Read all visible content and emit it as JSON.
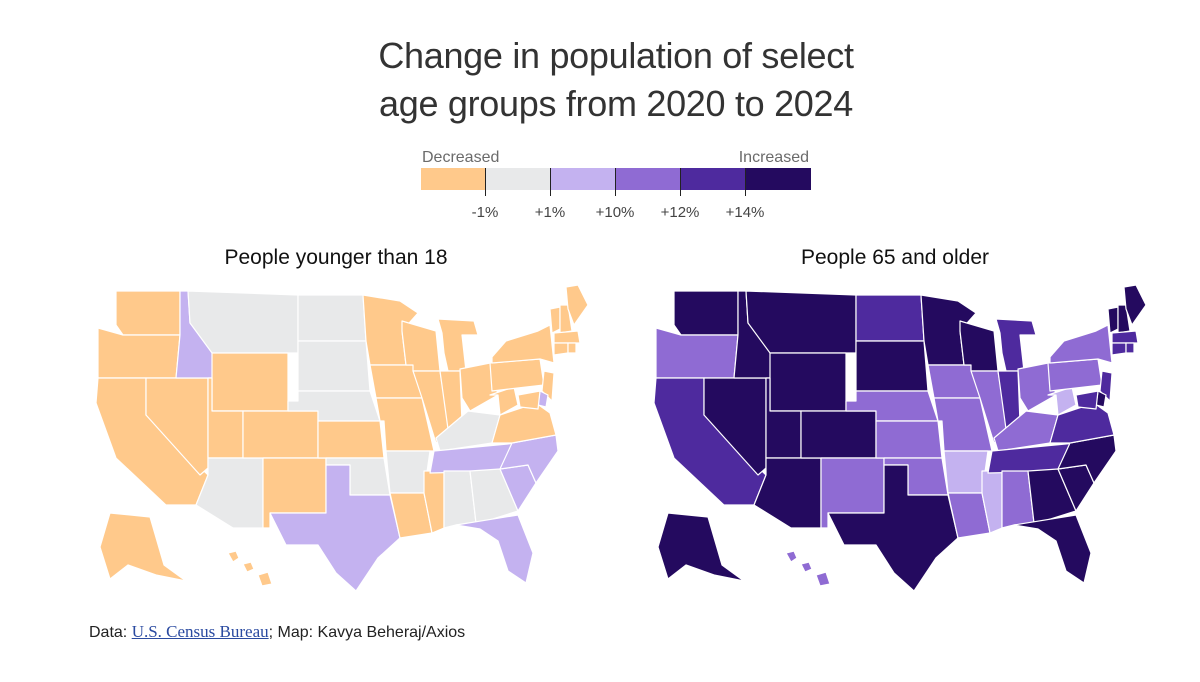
{
  "title": {
    "line1": "Change in population of select",
    "line2": "age groups from 2020 to 2024"
  },
  "legend": {
    "left_label": "Decreased",
    "right_label": "Increased",
    "colors": [
      "#ffc98b",
      "#e8e9ea",
      "#c4b2f0",
      "#8f6bd3",
      "#4e2a9e",
      "#240a5f"
    ],
    "ticks": [
      "-1%",
      "+1%",
      "+10%",
      "+12%",
      "+14%"
    ]
  },
  "maps": [
    {
      "title": "People younger than 18",
      "states": {
        "WA": 0,
        "OR": 0,
        "CA": 0,
        "NV": 0,
        "ID": 2,
        "MT": 1,
        "WY": 0,
        "UT": 0,
        "AZ": 1,
        "CO": 0,
        "NM": 0,
        "ND": 1,
        "SD": 1,
        "NE": 1,
        "KS": 0,
        "OK": 1,
        "TX": 2,
        "MN": 0,
        "IA": 0,
        "MO": 0,
        "AR": 1,
        "LA": 0,
        "WI": 0,
        "IL": 0,
        "MS": 0,
        "MI": 0,
        "IN": 0,
        "KY": 1,
        "TN": 2,
        "AL": 1,
        "OH": 0,
        "GA": 1,
        "FL": 2,
        "SC": 2,
        "NC": 2,
        "VA": 0,
        "WV": 0,
        "PA": 0,
        "NY": 0,
        "VT": 0,
        "NH": 0,
        "ME": 0,
        "MA": 0,
        "CT": 0,
        "RI": 0,
        "NJ": 0,
        "DE": 2,
        "MD": 0,
        "AK": 0,
        "HI": 0
      }
    },
    {
      "title": "People 65 and older",
      "states": {
        "WA": 5,
        "OR": 3,
        "CA": 4,
        "NV": 5,
        "ID": 5,
        "MT": 5,
        "WY": 5,
        "UT": 5,
        "AZ": 5,
        "CO": 5,
        "NM": 3,
        "ND": 4,
        "SD": 5,
        "NE": 3,
        "KS": 3,
        "OK": 3,
        "TX": 5,
        "MN": 5,
        "IA": 3,
        "MO": 3,
        "AR": 2,
        "LA": 3,
        "WI": 5,
        "IL": 3,
        "MS": 2,
        "MI": 4,
        "IN": 4,
        "KY": 3,
        "TN": 4,
        "AL": 3,
        "OH": 3,
        "GA": 5,
        "FL": 5,
        "SC": 5,
        "NC": 5,
        "VA": 4,
        "WV": 2,
        "PA": 3,
        "NY": 3,
        "VT": 5,
        "NH": 5,
        "ME": 5,
        "MA": 4,
        "CT": 4,
        "RI": 4,
        "NJ": 4,
        "DE": 5,
        "MD": 4,
        "AK": 5,
        "HI": 3
      }
    }
  ],
  "footer": {
    "prefix": "Data: ",
    "link": "U.S. Census Bureau",
    "suffix": "; Map: Kavya Beheraj/Axios"
  }
}
